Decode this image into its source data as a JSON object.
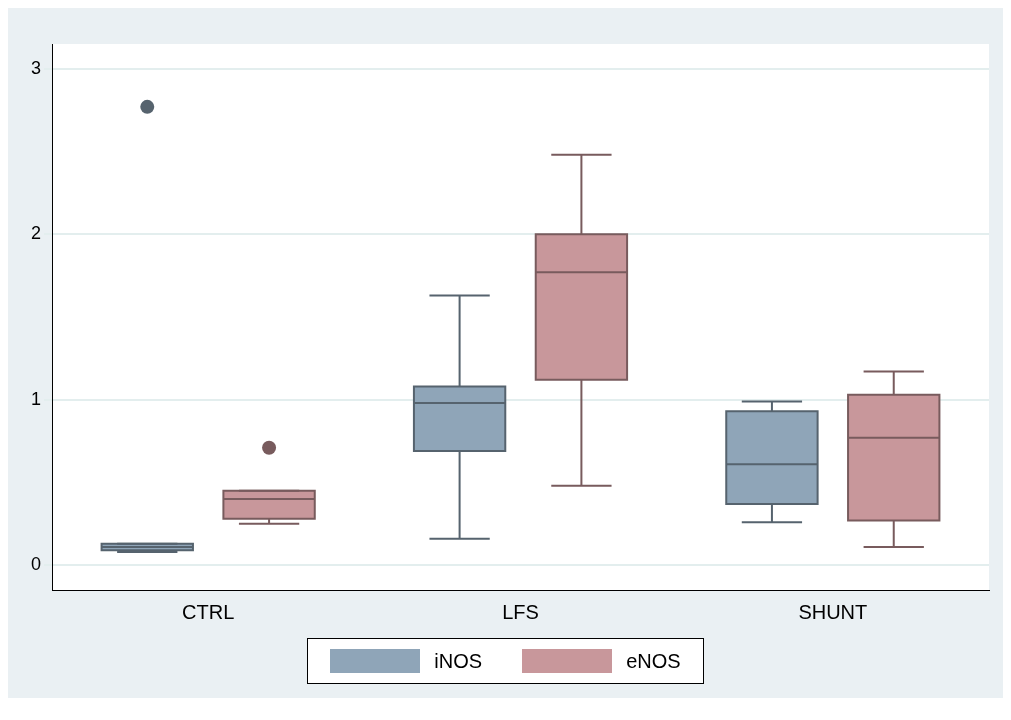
{
  "chart_data": {
    "type": "box",
    "categories": [
      "CTRL",
      "LFS",
      "SHUNT"
    ],
    "series": [
      {
        "name": "iNOS",
        "color": "#8fa5b8",
        "boxes": [
          {
            "low": 0.08,
            "q1": 0.09,
            "median": 0.11,
            "q3": 0.13,
            "high": 0.13,
            "outliers": [
              2.77
            ]
          },
          {
            "low": 0.16,
            "q1": 0.69,
            "median": 0.98,
            "q3": 1.08,
            "high": 1.63
          },
          {
            "low": 0.26,
            "q1": 0.37,
            "median": 0.61,
            "q3": 0.93,
            "high": 0.99
          }
        ]
      },
      {
        "name": "eNOS",
        "color": "#c8979b",
        "boxes": [
          {
            "low": 0.25,
            "q1": 0.28,
            "median": 0.4,
            "q3": 0.45,
            "high": 0.45,
            "outliers": [
              0.71
            ]
          },
          {
            "low": 0.48,
            "q1": 1.12,
            "median": 1.77,
            "q3": 2.0,
            "high": 2.48
          },
          {
            "low": 0.11,
            "q1": 0.27,
            "median": 0.77,
            "q3": 1.03,
            "high": 1.17
          }
        ]
      }
    ],
    "ylim": [
      -0.15,
      3.15
    ],
    "yticks": [
      0,
      1,
      2,
      3
    ],
    "grid": "y",
    "legend": "bottom"
  }
}
